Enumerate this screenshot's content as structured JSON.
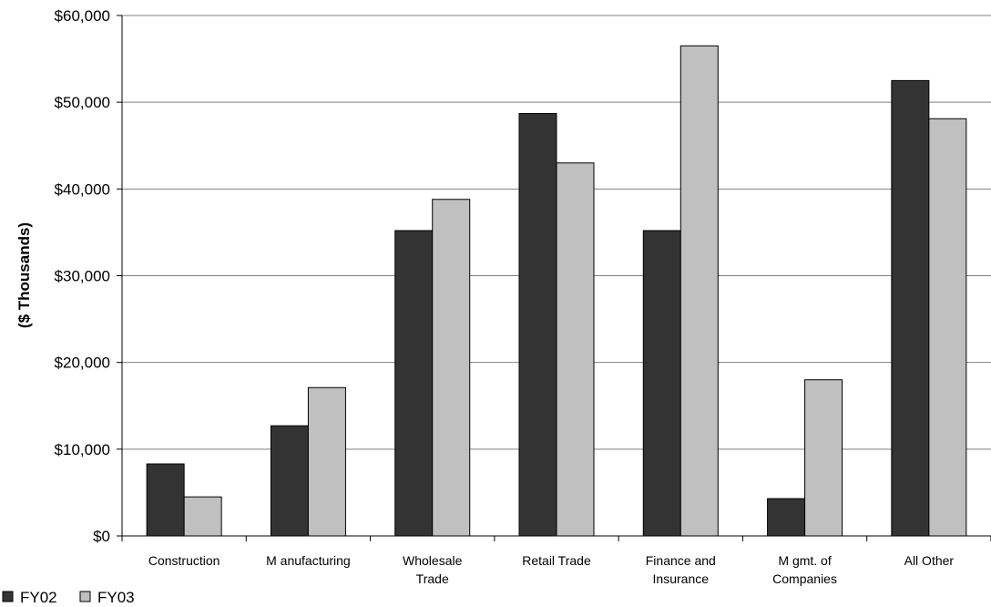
{
  "chart_data": {
    "type": "bar",
    "title": "",
    "xlabel": "",
    "ylabel": "($ Thousands)",
    "ylim": [
      0,
      60000
    ],
    "y_ticks": [
      0,
      10000,
      20000,
      30000,
      40000,
      50000,
      60000
    ],
    "y_tick_labels": [
      "$0",
      "$10,000",
      "$20,000",
      "$30,000",
      "$40,000",
      "$50,000",
      "$60,000"
    ],
    "grid": true,
    "legend_position": "bottom-left",
    "categories": [
      [
        "Construction"
      ],
      [
        "M anufacturing"
      ],
      [
        "Wholesale",
        "Trade"
      ],
      [
        "Retail Trade"
      ],
      [
        "Finance and",
        "Insurance"
      ],
      [
        "M gmt. of",
        "Companies"
      ],
      [
        "All Other"
      ]
    ],
    "series": [
      {
        "name": "FY02",
        "legend_label": "FY02",
        "color": "#333333",
        "values": [
          8300,
          12700,
          35200,
          48700,
          35200,
          4300,
          52500
        ]
      },
      {
        "name": "FY03",
        "legend_label": "FY03",
        "color": "#c0c0c0",
        "values": [
          4500,
          17100,
          38800,
          43000,
          56500,
          18000,
          48100
        ]
      }
    ]
  }
}
